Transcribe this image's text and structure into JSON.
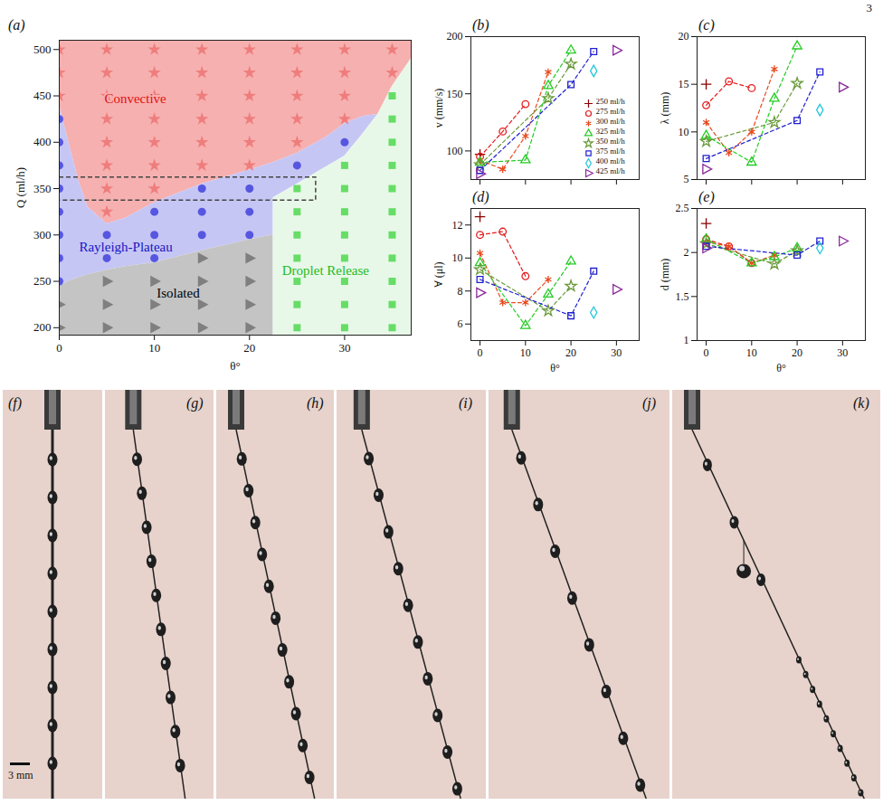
{
  "page_number": "3",
  "chart_data": [
    {
      "panel_label": "(a)",
      "type": "phase_diagram",
      "x_label": "θ°",
      "y_label": "Q (ml/h)",
      "xlim": [
        0,
        37
      ],
      "ylim": [
        192,
        510
      ],
      "xticks": [
        0,
        10,
        20,
        30
      ],
      "yticks": [
        200,
        250,
        300,
        350,
        400,
        450,
        500
      ],
      "regions": [
        {
          "name": "Convective",
          "color": "#f6b0b0",
          "label_color": "#e01010",
          "label_at": [
            8,
            447
          ],
          "marker": "star",
          "marker_color": "#ef7d7d",
          "theta": [
            0,
            1,
            2,
            3,
            5,
            7,
            10,
            15,
            20,
            22.5,
            25,
            28,
            30,
            32,
            33.5,
            35,
            37
          ],
          "Q_lower": [
            440,
            400,
            360,
            330,
            312,
            318,
            335,
            355,
            370,
            378,
            388,
            405,
            420,
            428,
            430,
            460,
            490
          ],
          "Q_upper": [
            510,
            510,
            510,
            510,
            510,
            510,
            510,
            510,
            510,
            510,
            510,
            510,
            510,
            510,
            510,
            510,
            510
          ],
          "points": {
            "theta": [
              0,
              0,
              0,
              5,
              5,
              5,
              5,
              5,
              5,
              5,
              5,
              10,
              10,
              10,
              10,
              10,
              10,
              10,
              15,
              15,
              15,
              15,
              15,
              15,
              20,
              20,
              20,
              20,
              20,
              20,
              25,
              25,
              25,
              25,
              25,
              30,
              30,
              30,
              30,
              35,
              35
            ],
            "Q": [
              450,
              475,
              500,
              325,
              350,
              375,
              400,
              425,
              450,
              475,
              500,
              350,
              375,
              400,
              425,
              450,
              475,
              500,
              375,
              400,
              425,
              450,
              475,
              500,
              375,
              400,
              425,
              450,
              475,
              500,
              400,
              425,
              450,
              475,
              500,
              425,
              450,
              475,
              500,
              475,
              500
            ]
          }
        },
        {
          "name": "Rayleigh-Plateau",
          "color": "#c6c6f5",
          "label_color": "#1515c0",
          "label_at": [
            7,
            287
          ],
          "marker": "circle",
          "marker_color": "#5656e0",
          "theta": [
            0,
            1,
            2,
            3,
            5,
            7,
            10,
            15,
            20,
            22.5,
            22.5,
            25,
            28,
            30,
            32,
            33.5
          ],
          "Q_lower": [
            245,
            250,
            254,
            257,
            262,
            266,
            270,
            283,
            295,
            300,
            340,
            355,
            373,
            385,
            410,
            430
          ],
          "Q_upper": [
            440,
            400,
            360,
            330,
            312,
            318,
            335,
            355,
            370,
            378,
            378,
            388,
            405,
            420,
            428,
            430
          ],
          "points": {
            "theta": [
              0,
              0,
              0,
              0,
              0,
              0,
              0,
              0,
              5,
              5,
              10,
              10,
              10,
              15,
              15,
              15,
              20,
              20,
              20,
              25,
              30
            ],
            "Q": [
              250,
              275,
              300,
              325,
              350,
              375,
              400,
              425,
              275,
              300,
              275,
              300,
              325,
              300,
              325,
              350,
              300,
              325,
              350,
              375,
              400
            ]
          }
        },
        {
          "name": "Isolated",
          "color": "#c4c4c4",
          "label_color": "#000000",
          "label_at": [
            12.5,
            237
          ],
          "marker": "triangle-right",
          "marker_color": "#7f7f7f",
          "theta": [
            0,
            1,
            2,
            3,
            5,
            7,
            10,
            15,
            20,
            22.5
          ],
          "Q_lower": [
            192,
            192,
            192,
            192,
            192,
            192,
            192,
            192,
            192,
            192
          ],
          "Q_upper": [
            245,
            250,
            254,
            257,
            262,
            266,
            270,
            283,
            295,
            300
          ],
          "points": {
            "theta": [
              0,
              0,
              5,
              5,
              5,
              10,
              10,
              10,
              15,
              15,
              15,
              15,
              20,
              20,
              20,
              20
            ],
            "Q": [
              200,
              225,
              200,
              225,
              250,
              200,
              225,
              250,
              200,
              225,
              250,
              275,
              200,
              225,
              250,
              275
            ]
          }
        },
        {
          "name": "Droplet Release",
          "color": "#e8f8e8",
          "label_color": "#22bb22",
          "label_at": [
            28,
            262
          ],
          "marker": "square",
          "marker_color": "#66dd66",
          "theta": [
            22.5,
            25,
            28,
            30,
            32,
            33.5,
            35,
            37
          ],
          "Q_lower": [
            192,
            192,
            192,
            192,
            192,
            192,
            192,
            192
          ],
          "Q_upper": [
            340,
            355,
            373,
            385,
            410,
            430,
            460,
            490
          ],
          "points": {
            "theta": [
              25,
              25,
              25,
              25,
              25,
              25,
              25,
              30,
              30,
              30,
              30,
              30,
              30,
              30,
              30,
              35,
              35,
              35,
              35,
              35,
              35,
              35,
              35,
              35,
              35,
              35
            ],
            "Q": [
              200,
              225,
              250,
              275,
              300,
              325,
              350,
              200,
              225,
              250,
              275,
              300,
              325,
              350,
              375,
              200,
              225,
              250,
              275,
              300,
              325,
              350,
              375,
              400,
              425,
              450
            ]
          }
        }
      ],
      "highlight_box": {
        "x": [
          0,
          27
        ],
        "y": [
          337,
          362
        ]
      }
    },
    {
      "panel_label": "(b)",
      "type": "scatter",
      "y_label": "v (mm/s)",
      "xlim": [
        -2,
        35
      ],
      "ylim": [
        75,
        200
      ],
      "xticks": [
        0,
        10,
        20,
        30
      ],
      "yticks": [
        100,
        150,
        200
      ],
      "tick_labels": "y",
      "legend": "bottom-right",
      "series": [
        {
          "name": "250 ml/h",
          "color": "#8b0000",
          "marker": "plus",
          "line_style": "none",
          "x": [
            0
          ],
          "values": [
            97
          ]
        },
        {
          "name": "275 ml/h",
          "color": "#e41a1c",
          "marker": "circle",
          "line_style": "dashed",
          "x": [
            0,
            5,
            10
          ],
          "values": [
            95,
            117,
            141
          ]
        },
        {
          "name": "300 ml/h",
          "color": "#e8491d",
          "marker": "asterisk",
          "line_style": "dashed",
          "x": [
            0,
            5,
            10,
            15
          ],
          "values": [
            92,
            84,
            113,
            169
          ]
        },
        {
          "name": "325 ml/h",
          "color": "#22cc22",
          "marker": "triangle",
          "line_style": "dashed",
          "x": [
            0,
            10,
            15,
            20
          ],
          "values": [
            90,
            92,
            157,
            188
          ]
        },
        {
          "name": "350 ml/h",
          "color": "#6a9a3a",
          "marker": "star",
          "line_style": "dashed",
          "x": [
            0,
            15,
            20
          ],
          "values": [
            88,
            146,
            176
          ]
        },
        {
          "name": "375 ml/h",
          "color": "#1f1fd0",
          "marker": "square",
          "line_style": "dashed",
          "x": [
            0,
            20,
            25
          ],
          "values": [
            83,
            158,
            187
          ]
        },
        {
          "name": "400 ml/h",
          "color": "#22c8d8",
          "marker": "diamond",
          "line_style": "none",
          "x": [
            25
          ],
          "values": [
            170
          ]
        },
        {
          "name": "425 ml/h",
          "color": "#8b2a9b",
          "marker": "triangle-right",
          "line_style": "none",
          "x": [
            0,
            30
          ],
          "values": [
            80,
            188
          ]
        }
      ]
    },
    {
      "panel_label": "(c)",
      "type": "scatter",
      "y_label": "λ (mm)",
      "xlim": [
        -2,
        35
      ],
      "ylim": [
        5,
        20
      ],
      "xticks": [
        0,
        10,
        20,
        30
      ],
      "yticks": [
        5,
        10,
        15,
        20
      ],
      "tick_labels": "y",
      "series": [
        {
          "color": "#8b0000",
          "marker": "plus",
          "line_style": "none",
          "x": [
            0
          ],
          "values": [
            15
          ]
        },
        {
          "color": "#e41a1c",
          "marker": "circle",
          "line_style": "dashed",
          "x": [
            0,
            5,
            10
          ],
          "values": [
            12.8,
            15.3,
            14.6
          ]
        },
        {
          "color": "#e8491d",
          "marker": "asterisk",
          "line_style": "dashed",
          "x": [
            0,
            5,
            10,
            15
          ],
          "values": [
            11,
            7.8,
            10,
            16.6
          ]
        },
        {
          "color": "#22cc22",
          "marker": "triangle",
          "line_style": "dashed",
          "x": [
            0,
            10,
            15,
            20
          ],
          "values": [
            9.6,
            6.8,
            13.5,
            19
          ]
        },
        {
          "color": "#6a9a3a",
          "marker": "star",
          "line_style": "dashed",
          "x": [
            0,
            15,
            20
          ],
          "values": [
            9,
            11,
            15.1
          ]
        },
        {
          "color": "#1f1fd0",
          "marker": "square",
          "line_style": "dashed",
          "x": [
            0,
            20,
            25
          ],
          "values": [
            7.2,
            11.2,
            16.3
          ]
        },
        {
          "color": "#22c8d8",
          "marker": "diamond",
          "line_style": "none",
          "x": [
            25
          ],
          "values": [
            12.3
          ]
        },
        {
          "color": "#8b2a9b",
          "marker": "triangle-right",
          "line_style": "none",
          "x": [
            0,
            30
          ],
          "values": [
            6.1,
            14.7
          ]
        }
      ]
    },
    {
      "panel_label": "(d)",
      "type": "scatter",
      "x_label": "θ°",
      "y_label": "∀ (μl)",
      "xlim": [
        -2,
        35
      ],
      "ylim": [
        5,
        13
      ],
      "xticks": [
        0,
        10,
        20,
        30
      ],
      "yticks": [
        6,
        8,
        10,
        12
      ],
      "series": [
        {
          "color": "#8b0000",
          "marker": "plus",
          "line_style": "none",
          "x": [
            0
          ],
          "values": [
            12.5
          ]
        },
        {
          "color": "#e41a1c",
          "marker": "circle",
          "line_style": "dashed",
          "x": [
            0,
            5,
            10
          ],
          "values": [
            11.4,
            11.6,
            8.9
          ]
        },
        {
          "color": "#e8491d",
          "marker": "asterisk",
          "line_style": "dashed",
          "x": [
            0,
            5,
            10,
            15
          ],
          "values": [
            10.3,
            7.3,
            7.3,
            8.7
          ]
        },
        {
          "color": "#22cc22",
          "marker": "triangle",
          "line_style": "dashed",
          "x": [
            0,
            10,
            15,
            20
          ],
          "values": [
            9.7,
            5.9,
            7.8,
            9.8
          ]
        },
        {
          "color": "#6a9a3a",
          "marker": "star",
          "line_style": "dashed",
          "x": [
            0,
            15,
            20
          ],
          "values": [
            9.3,
            6.8,
            8.3
          ]
        },
        {
          "color": "#1f1fd0",
          "marker": "square",
          "line_style": "dashed",
          "x": [
            0,
            20,
            25
          ],
          "values": [
            8.7,
            6.5,
            9.2
          ]
        },
        {
          "color": "#22c8d8",
          "marker": "diamond",
          "line_style": "none",
          "x": [
            25
          ],
          "values": [
            6.7
          ]
        },
        {
          "color": "#8b2a9b",
          "marker": "triangle-right",
          "line_style": "none",
          "x": [
            0,
            30
          ],
          "values": [
            7.9,
            8.1
          ]
        }
      ]
    },
    {
      "panel_label": "(e)",
      "type": "scatter",
      "x_label": "θ°",
      "y_label": "d (mm)",
      "xlim": [
        -2,
        35
      ],
      "ylim": [
        1,
        2.5
      ],
      "xticks": [
        0,
        10,
        20,
        30
      ],
      "yticks": [
        1,
        1.5,
        2,
        2.5
      ],
      "series": [
        {
          "color": "#8b0000",
          "marker": "plus",
          "line_style": "none",
          "x": [
            0
          ],
          "values": [
            2.33
          ]
        },
        {
          "color": "#e41a1c",
          "marker": "circle",
          "line_style": "dashed",
          "x": [
            0,
            5,
            10
          ],
          "values": [
            2.15,
            2.07,
            1.88
          ]
        },
        {
          "color": "#e8491d",
          "marker": "asterisk",
          "line_style": "dashed",
          "x": [
            0,
            5,
            10,
            15
          ],
          "values": [
            2.12,
            2.07,
            1.88,
            1.97
          ]
        },
        {
          "color": "#22cc22",
          "marker": "triangle",
          "line_style": "dashed",
          "x": [
            0,
            10,
            15,
            20
          ],
          "values": [
            2.15,
            1.88,
            1.95,
            2.05
          ]
        },
        {
          "color": "#6a9a3a",
          "marker": "star",
          "line_style": "dashed",
          "x": [
            0,
            15,
            20
          ],
          "values": [
            2.1,
            1.87,
            2.02
          ]
        },
        {
          "color": "#1f1fd0",
          "marker": "square",
          "line_style": "dashed",
          "x": [
            0,
            20,
            25
          ],
          "values": [
            2.07,
            1.97,
            2.13
          ]
        },
        {
          "color": "#22c8d8",
          "marker": "diamond",
          "line_style": "none",
          "x": [
            25
          ],
          "values": [
            2.05
          ]
        },
        {
          "color": "#8b2a9b",
          "marker": "triangle-right",
          "line_style": "none",
          "x": [
            0,
            30
          ],
          "values": [
            2.05,
            2.13
          ]
        }
      ]
    }
  ],
  "photographs": {
    "panels": [
      "(f)",
      "(g)",
      "(h)",
      "(i)",
      "(j)",
      "(k)"
    ],
    "scale_bar": "3 mm"
  }
}
